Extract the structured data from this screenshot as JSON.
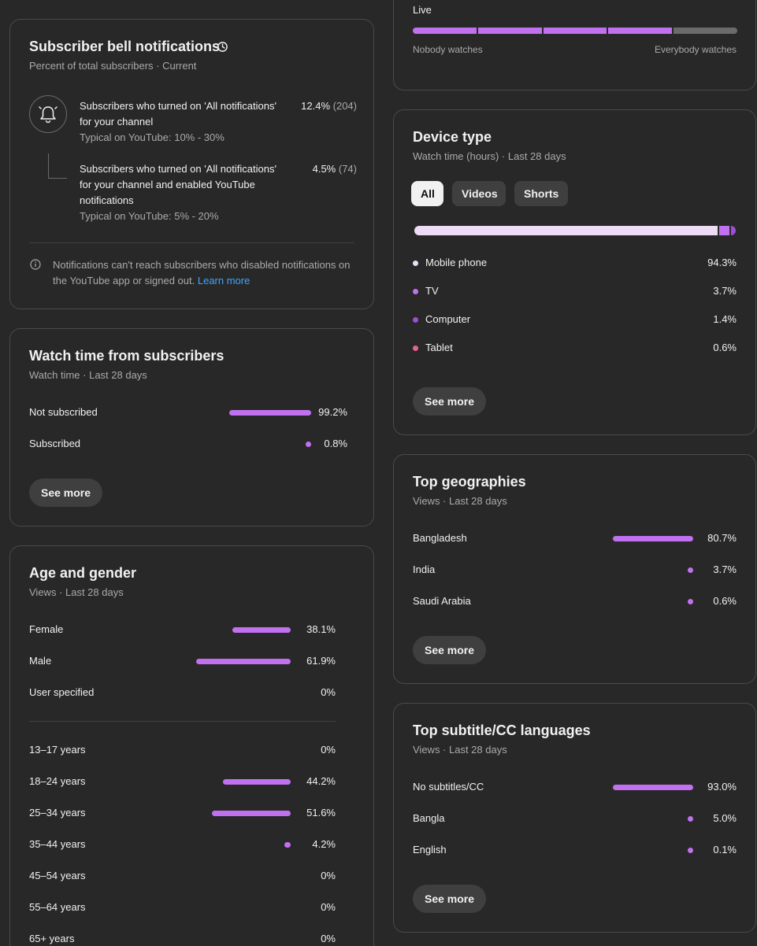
{
  "bell": {
    "title": "Subscriber bell notifications",
    "subtitle": "Percent of total subscribers · Current",
    "items": [
      {
        "text": "Subscribers who turned on 'All notifications' for your channel",
        "typical": "Typical on YouTube: 10% - 30%",
        "pct": "12.4%",
        "count": "(204)"
      },
      {
        "text": "Subscribers who turned on 'All notifications' for your channel and enabled YouTube notifications",
        "typical": "Typical on YouTube: 5% - 20%",
        "pct": "4.5%",
        "count": "(74)"
      }
    ],
    "note": "Notifications can't reach subscribers who disabled notifications on the YouTube app or signed out.",
    "learn_more": "Learn more"
  },
  "watch_subs": {
    "title": "Watch time from subscribers",
    "subtitle": "Watch time · Last 28 days",
    "rows": [
      {
        "label": "Not subscribed",
        "value": "99.2%",
        "fraction": 0.992
      },
      {
        "label": "Subscribed",
        "value": "0.8%",
        "fraction": 0.008
      }
    ],
    "see_more": "See more"
  },
  "age_gender": {
    "title": "Age and gender",
    "subtitle": "Views · Last 28 days",
    "gender": [
      {
        "label": "Female",
        "value": "38.1%",
        "fraction": 0.381
      },
      {
        "label": "Male",
        "value": "61.9%",
        "fraction": 0.619
      },
      {
        "label": "User specified",
        "value": "0%",
        "fraction": 0
      }
    ],
    "ages": [
      {
        "label": "13–17 years",
        "value": "0%",
        "fraction": 0
      },
      {
        "label": "18–24 years",
        "value": "44.2%",
        "fraction": 0.442
      },
      {
        "label": "25–34 years",
        "value": "51.6%",
        "fraction": 0.516
      },
      {
        "label": "35–44 years",
        "value": "4.2%",
        "fraction": 0.042
      },
      {
        "label": "45–54 years",
        "value": "0%",
        "fraction": 0
      },
      {
        "label": "55–64 years",
        "value": "0%",
        "fraction": 0
      },
      {
        "label": "65+ years",
        "value": "0%",
        "fraction": 0
      }
    ]
  },
  "live": {
    "label": "Live",
    "min_label": "Nobody watches",
    "max_label": "Everybody watches",
    "filled_segments": 4,
    "total_segments": 5
  },
  "device": {
    "title": "Device type",
    "subtitle": "Watch time (hours) · Last 28 days",
    "chips": [
      "All",
      "Videos",
      "Shorts"
    ],
    "active_chip": 0,
    "items": [
      {
        "label": "Mobile phone",
        "value": "94.3%",
        "fraction": 0.943,
        "color": "#eedcf6"
      },
      {
        "label": "TV",
        "value": "3.7%",
        "fraction": 0.037,
        "color": "#c171f0"
      },
      {
        "label": "Computer",
        "value": "1.4%",
        "fraction": 0.014,
        "color": "#9b4fd6"
      },
      {
        "label": "Tablet",
        "value": "0.6%",
        "fraction": 0.006,
        "color": "#e8609b"
      }
    ],
    "see_more": "See more"
  },
  "geo": {
    "title": "Top geographies",
    "subtitle": "Views · Last 28 days",
    "rows": [
      {
        "label": "Bangladesh",
        "value": "80.7%",
        "fraction": 0.807
      },
      {
        "label": "India",
        "value": "3.7%",
        "fraction": 0.037
      },
      {
        "label": "Saudi Arabia",
        "value": "0.6%",
        "fraction": 0.006
      }
    ],
    "see_more": "See more"
  },
  "subtitles": {
    "title": "Top subtitle/CC languages",
    "subtitle": "Views · Last 28 days",
    "rows": [
      {
        "label": "No subtitles/CC",
        "value": "93.0%",
        "fraction": 0.93
      },
      {
        "label": "Bangla",
        "value": "5.0%",
        "fraction": 0.05
      },
      {
        "label": "English",
        "value": "0.1%",
        "fraction": 0.001
      }
    ],
    "see_more": "See more"
  },
  "colors": {
    "accent": "#c171f0",
    "link": "#3ea6ff",
    "card_border": "#4a4a4a"
  }
}
